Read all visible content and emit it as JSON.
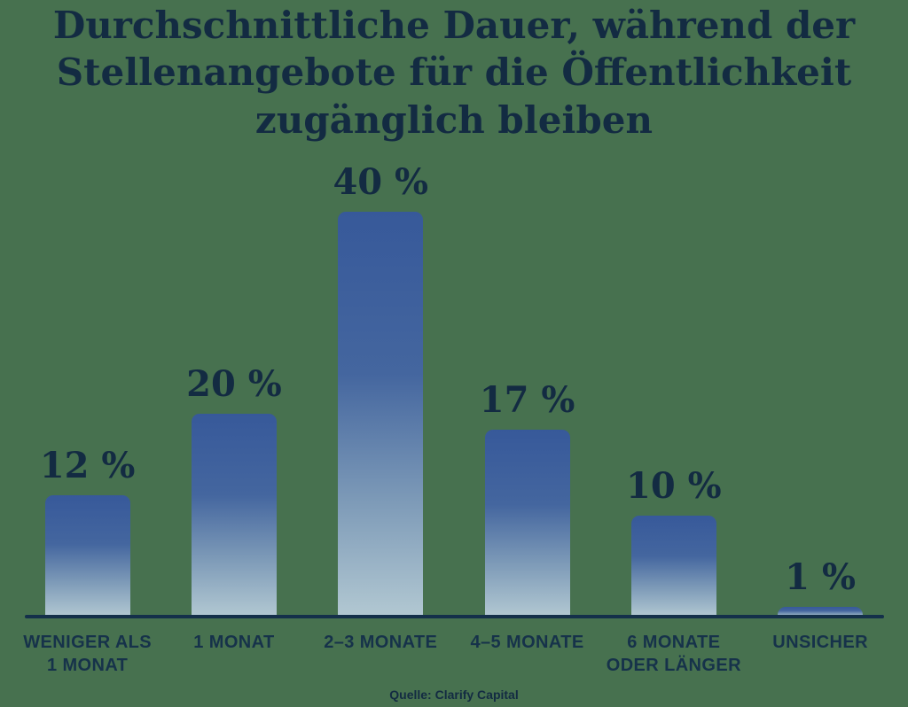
{
  "page": {
    "background_color": "#47714F",
    "text_color": "#132B42",
    "axis_color": "#14304A",
    "bar_gradient": [
      "#37599A",
      "#44669F",
      "#7E9BB8",
      "#B2C8D2"
    ]
  },
  "title": {
    "lines": [
      "Durchschnittliche Dauer, während der",
      "Stellenangebote für die Öffentlichkeit",
      "zugänglich bleiben"
    ]
  },
  "source": "Quelle: Clarify Capital",
  "chart_data": {
    "type": "bar",
    "title": "Durchschnittliche Dauer, während der Stellenangebote für die Öffentlichkeit zugänglich bleiben",
    "categories": [
      "Weniger als 1 Monat",
      "1 Monat",
      "2–3 Monate",
      "4–5 Monate",
      "6 Monate oder länger",
      "Unsicher"
    ],
    "values": [
      12,
      20,
      40,
      17,
      10,
      1
    ],
    "unit": "%",
    "xlabel": "",
    "ylabel": "",
    "ylim": [
      0,
      40
    ],
    "grid": false,
    "legend": false,
    "bars": [
      {
        "value": 12,
        "value_label": "12 %",
        "category_display": "WENIGER ALS\n1 MONAT"
      },
      {
        "value": 20,
        "value_label": "20 %",
        "category_display": "1 MONAT"
      },
      {
        "value": 40,
        "value_label": "40 %",
        "category_display": "2–3 MONATE"
      },
      {
        "value": 17,
        "value_label": "17 %",
        "category_display": "4–5 MONATE"
      },
      {
        "value": 10,
        "value_label": "10 %",
        "category_display": "6 MONATE\nODER LÄNGER"
      },
      {
        "value": 1,
        "value_label": "1 %",
        "category_display": "UNSICHER"
      }
    ],
    "source": "Quelle: Clarify Capital"
  }
}
